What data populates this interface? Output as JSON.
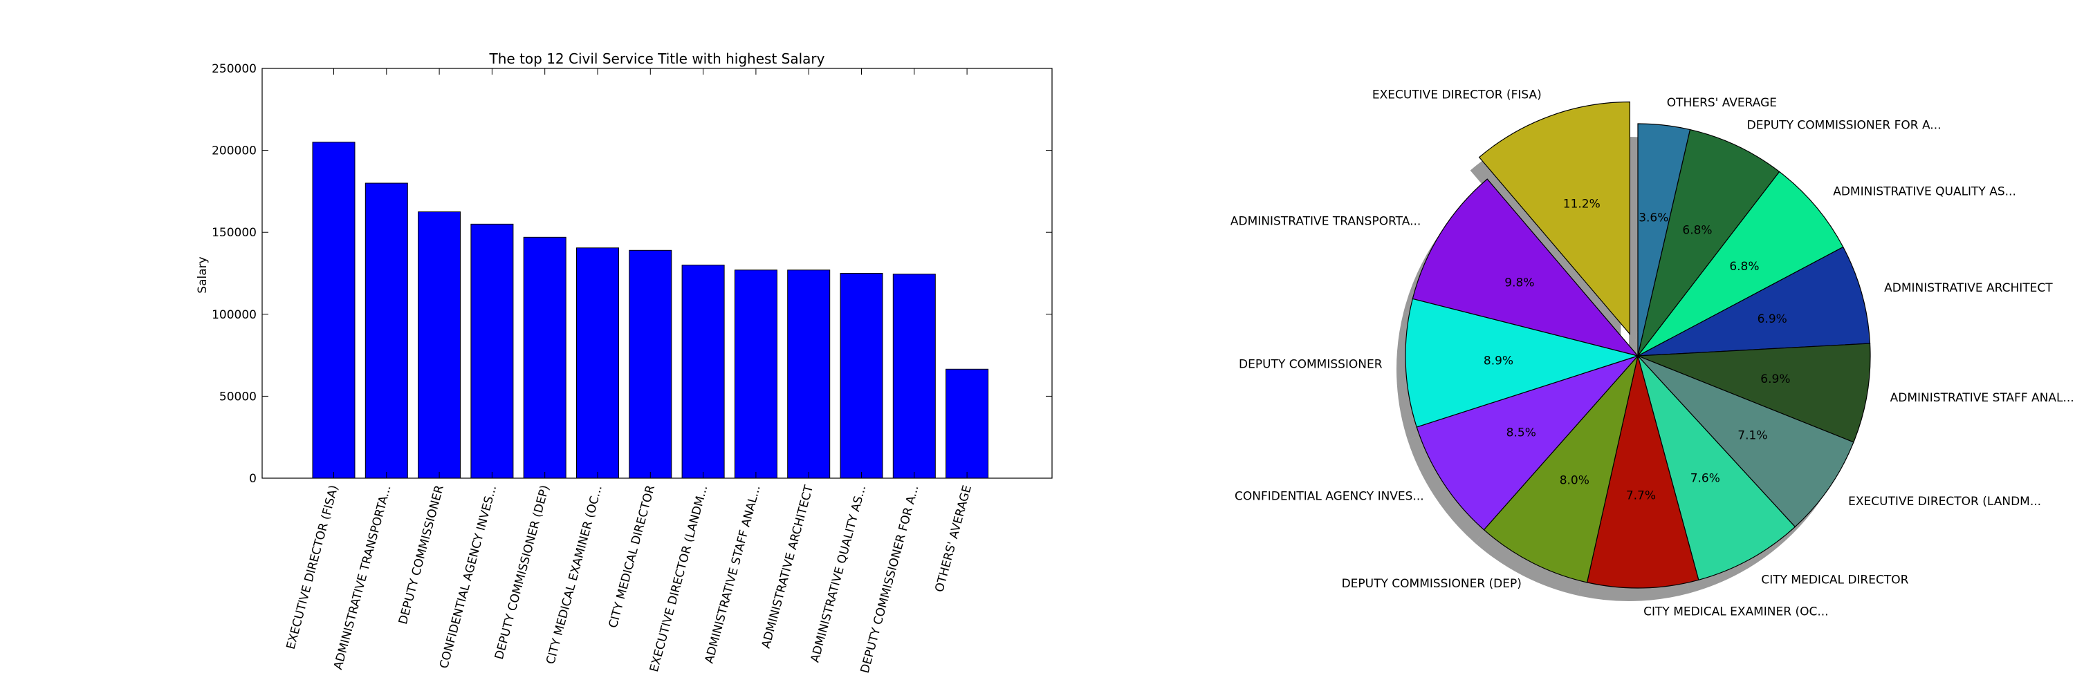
{
  "chart_data": [
    {
      "type": "bar",
      "title": "The top 12 Civil Service Title with highest Salary",
      "xlabel": "",
      "ylabel": "Salary",
      "ylim": [
        0,
        250000
      ],
      "yticks": [
        0,
        50000,
        100000,
        150000,
        200000,
        250000
      ],
      "grid": false,
      "bar_color": "#0000ff",
      "categories": [
        "EXECUTIVE DIRECTOR (FISA)",
        "ADMINISTRATIVE TRANSPORTA...",
        "DEPUTY COMMISSIONER",
        "CONFIDENTIAL AGENCY INVES...",
        "DEPUTY COMMISSIONER (DEP)",
        "CITY MEDICAL EXAMINER (OC...",
        "CITY MEDICAL DIRECTOR",
        "EXECUTIVE DIRECTOR (LANDM...",
        "ADMINISTRATIVE STAFF ANAL...",
        "ADMINISTRATIVE ARCHITECT",
        "ADMINISTRATIVE QUALITY AS...",
        "DEPUTY COMMISSIONER FOR A...",
        "OTHERS' AVERAGE"
      ],
      "values": [
        205000,
        180000,
        162500,
        155000,
        147000,
        140500,
        139000,
        130000,
        127000,
        127000,
        125000,
        124500,
        66500
      ]
    },
    {
      "type": "pie",
      "title": "",
      "legend": "none",
      "slices": [
        {
          "label": "OTHERS' AVERAGE",
          "pct_label": "3.6%",
          "value": 3.6,
          "color": "#2a77a0",
          "explode": false
        },
        {
          "label": "DEPUTY COMMISSIONER FOR A...",
          "pct_label": "6.8%",
          "value": 6.8,
          "color": "#226e35",
          "explode": false
        },
        {
          "label": "ADMINISTRATIVE QUALITY AS...",
          "pct_label": "6.8%",
          "value": 6.8,
          "color": "#08e88f",
          "explode": false
        },
        {
          "label": "ADMINISTRATIVE ARCHITECT",
          "pct_label": "6.9%",
          "value": 6.9,
          "color": "#1437a1",
          "explode": false
        },
        {
          "label": "ADMINISTRATIVE STAFF ANAL...",
          "pct_label": "6.9%",
          "value": 6.9,
          "color": "#2b5224",
          "explode": false
        },
        {
          "label": "EXECUTIVE DIRECTOR (LANDM...",
          "pct_label": "7.1%",
          "value": 7.1,
          "color": "#558a81",
          "explode": false
        },
        {
          "label": "CITY MEDICAL DIRECTOR",
          "pct_label": "7.6%",
          "value": 7.6,
          "color": "#2bd69c",
          "explode": false
        },
        {
          "label": "CITY MEDICAL EXAMINER (OC...",
          "pct_label": "7.7%",
          "value": 7.7,
          "color": "#b20f03",
          "explode": false
        },
        {
          "label": "DEPUTY COMMISSIONER (DEP)",
          "pct_label": "8.0%",
          "value": 8.0,
          "color": "#6b961a",
          "explode": false
        },
        {
          "label": "CONFIDENTIAL AGENCY INVES...",
          "pct_label": "8.5%",
          "value": 8.5,
          "color": "#8629f9",
          "explode": false
        },
        {
          "label": "DEPUTY COMMISSIONER",
          "pct_label": "8.9%",
          "value": 8.9,
          "color": "#06eddb",
          "explode": false
        },
        {
          "label": "ADMINISTRATIVE TRANSPORTA...",
          "pct_label": "9.8%",
          "value": 9.8,
          "color": "#8611e5",
          "explode": false
        },
        {
          "label": "EXECUTIVE DIRECTOR (FISA)",
          "pct_label": "11.2%",
          "value": 11.2,
          "color": "#bdaf1b",
          "explode": true
        }
      ]
    }
  ]
}
